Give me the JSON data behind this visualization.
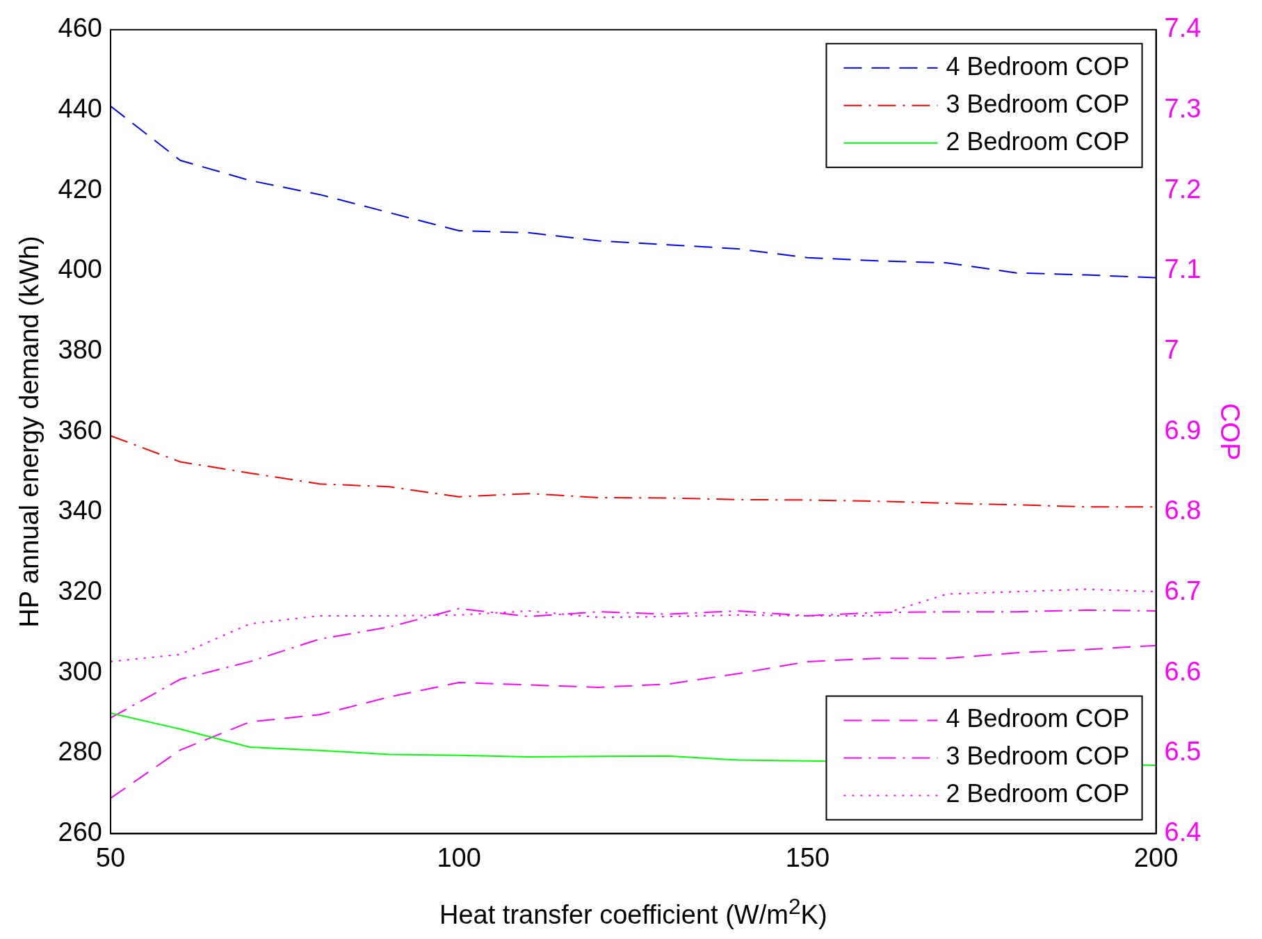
{
  "chart_data": {
    "type": "line",
    "xlabel": "Heat transfer coefficient (W/m$^{2}$K)",
    "ylabel": "HP annual energy demand (kWh)",
    "y2label": "COP",
    "x": [
      50,
      60,
      70,
      80,
      90,
      100,
      110,
      120,
      130,
      140,
      150,
      160,
      170,
      180,
      190,
      200
    ],
    "xlim": [
      50,
      200
    ],
    "xticks": [
      50,
      100,
      150,
      200
    ],
    "ylim": [
      260,
      460
    ],
    "yticks": [
      260,
      280,
      300,
      320,
      340,
      360,
      380,
      400,
      420,
      440,
      460
    ],
    "y2lim": [
      6.4,
      7.4
    ],
    "y2ticks": [
      6.4,
      6.5,
      6.6,
      6.7,
      6.8,
      6.9,
      7,
      7.1,
      7.2,
      7.3,
      7.4
    ],
    "grid": false,
    "legend": "top right",
    "marker": "none",
    "series": [
      {
        "name": "4 Bedroom COP",
        "color": "#0000ff",
        "line_style": "dashed",
        "values": [
          441,
          427.5,
          422.5,
          419,
          414.5,
          410,
          409.5,
          407.5,
          406.5,
          405.5,
          403.3,
          402.5,
          402,
          399.5,
          399,
          398.3
        ]
      },
      {
        "name": "3 Bedroom COP",
        "color": "#ff0000",
        "line_style": "dashdot",
        "values": [
          359,
          352.5,
          349.7,
          347,
          346.3,
          343.8,
          344.6,
          343.6,
          343.5,
          343.1,
          343,
          342.7,
          342.2,
          341.8,
          341.3,
          341.3
        ]
      },
      {
        "name": "2 Bedroom COP",
        "color": "#00ff00",
        "line_style": "solid",
        "values": [
          290,
          286,
          281.5,
          280.7,
          279.7,
          279.5,
          279.1,
          279.2,
          279.3,
          278.3,
          null,
          null,
          null,
          null,
          null,
          277
        ]
      },
      {
        "name": "4 Bedroom COP",
        "color": "#ff00ff",
        "line_style": "dashed",
        "axis": "y2",
        "values": [
          6.444,
          6.504,
          6.539,
          6.548,
          6.57,
          6.588,
          6.585,
          6.582,
          6.586,
          6.599,
          6.614,
          6.618,
          6.618,
          6.625,
          6.629,
          6.634
        ]
      },
      {
        "name": "3 Bedroom COP",
        "color": "#ff00ff",
        "line_style": "dashdot",
        "axis": "y2",
        "values": [
          6.544,
          6.592,
          6.614,
          6.642,
          6.657,
          6.68,
          6.67,
          6.676,
          6.673,
          6.677,
          6.671,
          6.675,
          6.676,
          6.676,
          6.678,
          6.677
        ]
      },
      {
        "name": "2 Bedroom COP",
        "color": "#ff00ff",
        "line_style": "dotted",
        "axis": "y2",
        "values": [
          6.614,
          6.623,
          6.661,
          6.671,
          6.671,
          6.672,
          6.677,
          6.669,
          6.67,
          6.672,
          6.671,
          6.671,
          6.698,
          6.701,
          6.704,
          6.701
        ]
      }
    ]
  }
}
